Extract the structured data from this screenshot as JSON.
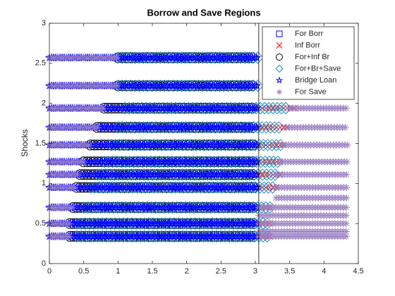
{
  "chart_data": {
    "type": "scatter",
    "title": "Borrow and Save Regions",
    "ylabel": "Shocks",
    "xlim": [
      0,
      4.5
    ],
    "ylim": [
      0,
      3
    ],
    "xticks": [
      0,
      0.5,
      1,
      1.5,
      2,
      2.5,
      3,
      3.5,
      4,
      4.5
    ],
    "yticks": [
      0,
      0.5,
      1,
      1.5,
      2,
      2.5,
      3
    ],
    "xline": 3.05,
    "legend": "northeast",
    "series": [
      {
        "name": "For Borr",
        "color": "#0000ff",
        "marker": "square",
        "y": [],
        "xmin": [],
        "xmax": []
      },
      {
        "name": "Inf Borr",
        "color": "#ff0000",
        "marker": "x",
        "y": [
          1.94,
          1.7,
          1.48,
          1.27,
          1.11,
          0.95,
          0.7,
          0.5,
          0.34
        ],
        "xmin": [
          3.0,
          3.0,
          3.0,
          3.0,
          3.0,
          3.0,
          3.0,
          3.0,
          3.0
        ],
        "xmax": [
          3.6,
          3.5,
          3.45,
          3.4,
          3.4,
          3.35,
          3.3,
          3.3,
          3.25
        ]
      },
      {
        "name": "For+Inf Br",
        "color": "#000000",
        "marker": "circle",
        "y": [
          2.57,
          2.22,
          1.94,
          1.7,
          1.48,
          1.27,
          1.11,
          0.95,
          0.7,
          0.5,
          0.34
        ],
        "xmin": [
          1.0,
          1.0,
          0.8,
          0.7,
          0.6,
          0.5,
          0.45,
          0.4,
          0.35,
          0.3,
          0.3
        ],
        "xmax": [
          3.0,
          3.0,
          3.0,
          3.0,
          3.0,
          3.0,
          3.0,
          3.0,
          3.0,
          3.0,
          3.0
        ]
      },
      {
        "name": "For+Br+Save",
        "color": "#1f8fcc",
        "marker": "diamond",
        "y": [
          2.57,
          2.22,
          1.94,
          1.7,
          1.48,
          1.27,
          1.11,
          0.95,
          0.7,
          0.5,
          0.34
        ],
        "xmin": [
          1.0,
          1.0,
          1.1,
          1.0,
          0.9,
          0.8,
          0.7,
          0.6,
          0.5,
          0.4,
          0.4
        ],
        "xmax": [
          3.05,
          3.05,
          3.5,
          3.4,
          3.4,
          3.35,
          3.3,
          3.3,
          3.25,
          3.2,
          3.2
        ]
      },
      {
        "name": "Bridge Loan",
        "color": "#0000ff",
        "marker": "star",
        "y": [
          2.57,
          2.22,
          1.94,
          1.7,
          1.48,
          1.27,
          1.11,
          0.95,
          0.7,
          0.5,
          0.34
        ],
        "xmin": [
          0,
          0,
          0,
          0,
          0,
          0,
          0,
          0,
          0,
          0,
          0
        ],
        "xmax": [
          3.05,
          3.05,
          3.05,
          3.05,
          3.05,
          3.05,
          3.05,
          3.05,
          3.05,
          3.05,
          3.05
        ]
      },
      {
        "name": "For Save",
        "color": "#9b80c4",
        "marker": "asterisk",
        "y": [
          2.57,
          2.22,
          1.94,
          1.7,
          1.48,
          1.27,
          1.11,
          0.95,
          0.7,
          0.5,
          0.34,
          1.94,
          1.7,
          1.48,
          1.27,
          1.11,
          0.95,
          0.82,
          0.7,
          0.6,
          0.5,
          0.4,
          0.34
        ],
        "xmin": [
          0,
          0,
          0,
          0,
          0,
          0,
          0,
          0,
          0,
          0,
          0,
          3.5,
          3.45,
          3.4,
          3.35,
          3.3,
          3.3,
          3.3,
          3.05,
          3.05,
          3.05,
          3.05,
          3.05
        ],
        "xmax": [
          1.0,
          1.0,
          0.8,
          0.7,
          0.6,
          0.5,
          0.45,
          0.4,
          0.35,
          0.3,
          0.3,
          4.35,
          4.35,
          4.35,
          4.35,
          4.35,
          4.35,
          4.35,
          4.35,
          4.35,
          4.35,
          4.35,
          4.35
        ]
      }
    ]
  }
}
